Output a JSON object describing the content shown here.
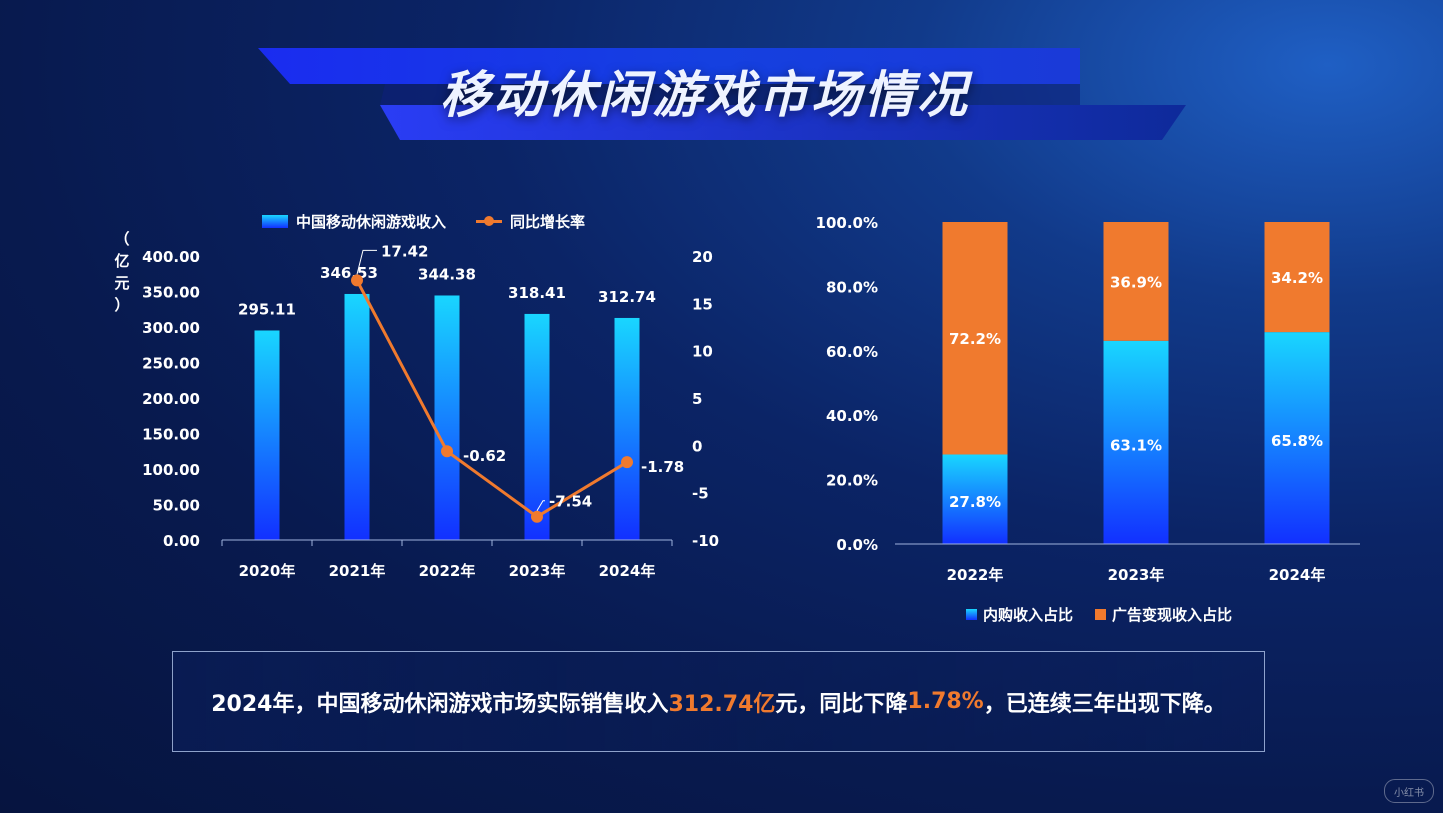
{
  "title": "移动休闲游戏市场情况",
  "legend_left": {
    "bar": "中国移动休闲游戏收入",
    "line": "同比增长率"
  },
  "legend_right": {
    "inapp": "内购收入占比",
    "ads": "广告变现收入占比"
  },
  "colors": {
    "orange": "#f07a2e",
    "bar_top": "#19d6ff",
    "bar_bottom": "#1230ff"
  },
  "chart_data": [
    {
      "type": "bar",
      "categories": [
        "2020年",
        "2021年",
        "2022年",
        "2023年",
        "2024年"
      ],
      "series": [
        {
          "name": "中国移动休闲游戏收入",
          "type": "bar",
          "axis": "left",
          "values": [
            295.11,
            346.53,
            344.38,
            318.41,
            312.74
          ]
        },
        {
          "name": "同比增长率",
          "type": "line",
          "axis": "right",
          "x": [
            "2021年",
            "2022年",
            "2023年",
            "2024年"
          ],
          "values": [
            17.42,
            -0.62,
            -7.54,
            -1.78
          ]
        }
      ],
      "ylabel_left": "（亿元）",
      "ylabel_right": "（%）",
      "ylim_left": [
        0,
        400
      ],
      "yticks_left": [
        "0.00",
        "50.00",
        "100.00",
        "150.00",
        "200.00",
        "250.00",
        "300.00",
        "350.00",
        "400.00"
      ],
      "ylim_right": [
        -10,
        20
      ],
      "yticks_right": [
        "-10",
        "-5",
        "0",
        "5",
        "10",
        "15",
        "20"
      ],
      "bar_labels": [
        "295.11",
        "346.53",
        "344.38",
        "318.41",
        "312.74"
      ],
      "line_labels": [
        "17.42",
        "-0.62",
        "-7.54",
        "-1.78"
      ],
      "legend": "top"
    },
    {
      "type": "bar",
      "stacked": true,
      "categories": [
        "2022年",
        "2023年",
        "2024年"
      ],
      "series": [
        {
          "name": "内购收入占比",
          "values": [
            27.8,
            63.1,
            65.8
          ]
        },
        {
          "name": "广告变现收入占比",
          "values": [
            72.2,
            36.9,
            34.2
          ]
        }
      ],
      "ylim": [
        0,
        100
      ],
      "yticks": [
        "0.0%",
        "20.0%",
        "40.0%",
        "60.0%",
        "80.0%",
        "100.0%"
      ],
      "inapp_labels": [
        "27.8%",
        "63.1%",
        "65.8%"
      ],
      "ads_labels": [
        "72.2%",
        "36.9%",
        "34.2%"
      ],
      "legend": "bottom"
    }
  ],
  "summary": {
    "prefix": "2024年，中国移动休闲游戏市场实际销售收入",
    "revenue": "312.74亿",
    "middle": "元，同比下降",
    "rate": "1.78%",
    "suffix": "，已连续三年出现下降。"
  },
  "watermark": "小红书"
}
